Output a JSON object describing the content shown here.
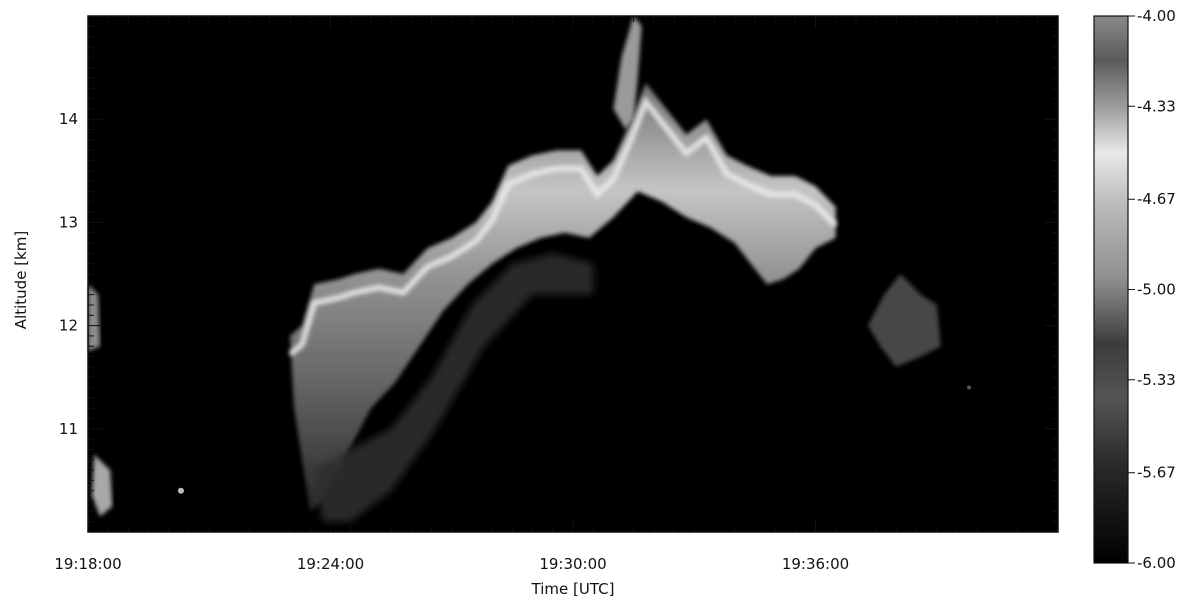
{
  "chart_data": {
    "type": "heatmap",
    "title": "",
    "xlabel": "Time [UTC]",
    "ylabel": "Altitude [km]",
    "x_ticks": [
      "19:18:00",
      "19:24:00",
      "19:30:00",
      "19:36:00"
    ],
    "x_tick_minutes": [
      0,
      6,
      12,
      18
    ],
    "xlim_minutes": [
      0,
      24
    ],
    "y_ticks": [
      "11",
      "12",
      "13",
      "14"
    ],
    "y_tick_values": [
      11,
      12,
      13,
      14
    ],
    "ylim": [
      10,
      15
    ],
    "colorbar": {
      "ticks": [
        "-4.00",
        "-4.33",
        "-4.67",
        "-5.00",
        "-5.33",
        "-5.67",
        "-6.00"
      ],
      "range": [
        -6.0,
        -4.0
      ],
      "colormap": "grayscale-with-banding"
    },
    "grid": false,
    "features": [
      {
        "name": "main cloud layer",
        "t_start_min": 5.0,
        "t_end_min": 18.5,
        "top_km_range": [
          12.4,
          14.3
        ],
        "bottom_km_range": [
          10.4,
          13.0
        ],
        "peak_value": -4.3
      },
      {
        "name": "secondary patch",
        "t_min": 20.0,
        "altitude_km": 12.0,
        "value": -5.5
      },
      {
        "name": "small patch left",
        "t_min": 0.2,
        "altitude_km": 10.6,
        "value": -4.8
      },
      {
        "name": "edge patch",
        "t_min": 0.0,
        "altitude_km": 12.2,
        "value": -4.9
      }
    ]
  },
  "colors": {
    "background": "#000000",
    "axis": "#111111",
    "page": "#ffffff"
  }
}
